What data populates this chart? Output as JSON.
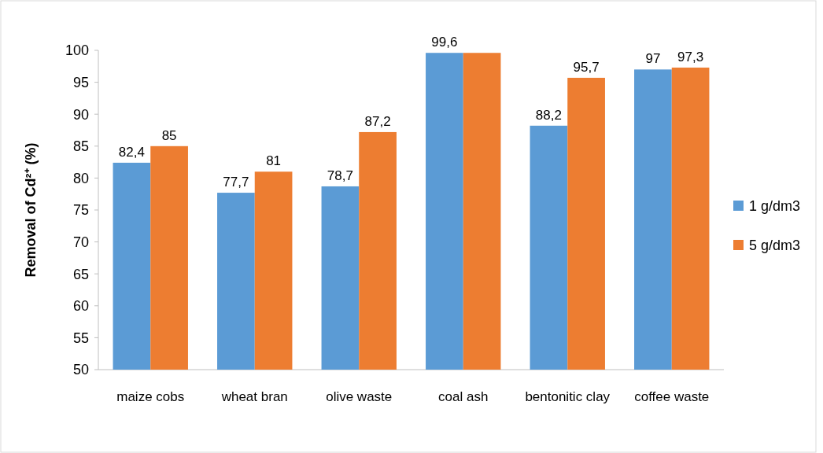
{
  "chart_data": {
    "type": "bar",
    "ylabel": "Removal of Cd²⁺ (%)",
    "categories": [
      "maize cobs",
      "wheat bran",
      "olive waste",
      "coal ash",
      "bentonitic clay",
      "coffee waste"
    ],
    "series": [
      {
        "name": "1 g/dm3",
        "color": "#5b9bd5",
        "values": [
          82.4,
          77.7,
          78.7,
          99.6,
          88.2,
          97
        ],
        "value_labels": [
          "82,4",
          "77,7",
          "78,7",
          "99,6",
          "88,2",
          "97"
        ]
      },
      {
        "name": "5 g/dm3",
        "color": "#ed7d31",
        "values": [
          85,
          81,
          87.2,
          99.6,
          95.7,
          97.3
        ],
        "value_labels": [
          "85",
          "81",
          "87,2",
          null,
          "95,7",
          "97,3"
        ]
      }
    ],
    "ylim": [
      50,
      100
    ],
    "yticks": [
      50,
      55,
      60,
      65,
      70,
      75,
      80,
      85,
      90,
      95,
      100
    ],
    "grid": false,
    "legend": "right"
  }
}
